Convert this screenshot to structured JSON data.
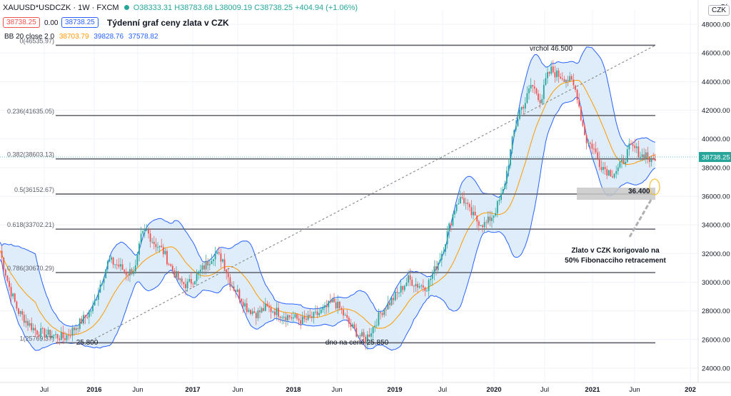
{
  "header": {
    "symbol": "XAUUSD*USDCZK · 1W · FXCM",
    "open": "O38333.31",
    "high": "H38783.68",
    "low": "L38009.19",
    "close": "C38738.25",
    "change": "+404.94 (+1.06%)",
    "sell_price": "38738.25",
    "spread": "0.00",
    "buy_price": "38738.25",
    "title": "Týdenní graf ceny zlata v CZK",
    "indicator_label": "BB 20 close 2 0",
    "bb_basis": "38703.79",
    "bb_upper": "39828.76",
    "bb_lower": "37578.82",
    "currency_button": "CZK",
    "top_right_cut": "5("
  },
  "colors": {
    "up": "#26a69a",
    "down": "#ef5350",
    "bb_fill": "#d6e9f8",
    "bb_band": "#2962ff",
    "bb_basis": "#ff9800",
    "fib_line": "#5d606b",
    "price_tag": "#26a69a"
  },
  "chart_data": {
    "type": "candlestick",
    "title": "Týdenní graf ceny zlata v CZK",
    "y_axis": {
      "ticks": [
        "48000.00",
        "46000.00",
        "44000.00",
        "42000.00",
        "40000.00",
        "38000.00",
        "36000.00",
        "34000.00",
        "32000.00",
        "30000.00",
        "28000.00",
        "26000.00",
        "24000.00"
      ],
      "ylim": [
        23000,
        49000
      ]
    },
    "x_axis": {
      "ticks": [
        "Jul",
        "2016",
        "Jun",
        "2017",
        "Jun",
        "2018",
        "Jun",
        "2019",
        "Jul",
        "2020",
        "Jul",
        "2021",
        "Jun",
        "202"
      ]
    },
    "last_price": "38738.25",
    "fib_levels": [
      {
        "label": "0(46535.97)",
        "value": 46535.97
      },
      {
        "label": "0.236(41635.05)",
        "value": 41635.05
      },
      {
        "label": "0.382(38603.13)",
        "value": 38603.13
      },
      {
        "label": "0.5(36152.67)",
        "value": 36152.67
      },
      {
        "label": "0.618(33702.21)",
        "value": 33702.21
      },
      {
        "label": "0.786(30670.29)",
        "value": 30670.29
      },
      {
        "label": "1(25769.37)",
        "value": 25769.37
      }
    ],
    "annotations": [
      {
        "text": "vrchol 46.500"
      },
      {
        "text": "25.800"
      },
      {
        "text": "dno na ceně 25.850"
      },
      {
        "text": "36.400"
      },
      {
        "text": "Zlato v CZK korigovalo na"
      },
      {
        "text": "50% Fibonacciho retracement"
      }
    ],
    "price_path": [
      [
        0,
        32200
      ],
      [
        12,
        29800
      ],
      [
        25,
        28000
      ],
      [
        38,
        27200
      ],
      [
        50,
        26600
      ],
      [
        62,
        26400
      ],
      [
        75,
        26300
      ],
      [
        90,
        26100
      ],
      [
        105,
        26800
      ],
      [
        120,
        27600
      ],
      [
        130,
        28200
      ],
      [
        140,
        29800
      ],
      [
        152,
        31500
      ],
      [
        165,
        31200
      ],
      [
        178,
        30600
      ],
      [
        190,
        31000
      ],
      [
        198,
        33200
      ],
      [
        205,
        33600
      ],
      [
        215,
        32800
      ],
      [
        228,
        32200
      ],
      [
        240,
        31000
      ],
      [
        252,
        30000
      ],
      [
        262,
        29800
      ],
      [
        275,
        30400
      ],
      [
        288,
        31200
      ],
      [
        300,
        32000
      ],
      [
        312,
        31600
      ],
      [
        322,
        30000
      ],
      [
        334,
        29200
      ],
      [
        346,
        28200
      ],
      [
        360,
        27800
      ],
      [
        372,
        28200
      ],
      [
        385,
        28000
      ],
      [
        398,
        27700
      ],
      [
        412,
        27500
      ],
      [
        425,
        27300
      ],
      [
        440,
        27600
      ],
      [
        455,
        28100
      ],
      [
        467,
        28700
      ],
      [
        478,
        28000
      ],
      [
        490,
        27000
      ],
      [
        503,
        26300
      ],
      [
        512,
        26000
      ],
      [
        522,
        26800
      ],
      [
        535,
        28000
      ],
      [
        548,
        28700
      ],
      [
        560,
        29400
      ],
      [
        572,
        30200
      ],
      [
        585,
        29800
      ],
      [
        598,
        29700
      ],
      [
        610,
        31000
      ],
      [
        620,
        32200
      ],
      [
        630,
        34000
      ],
      [
        640,
        35600
      ],
      [
        648,
        35900
      ],
      [
        658,
        34900
      ],
      [
        668,
        34300
      ],
      [
        680,
        34000
      ],
      [
        692,
        34800
      ],
      [
        704,
        36200
      ],
      [
        712,
        38300
      ],
      [
        720,
        40500
      ],
      [
        728,
        42000
      ],
      [
        736,
        42600
      ],
      [
        744,
        43800
      ],
      [
        752,
        43200
      ],
      [
        758,
        42600
      ],
      [
        765,
        44200
      ],
      [
        772,
        44800
      ],
      [
        780,
        44500
      ],
      [
        790,
        44300
      ],
      [
        800,
        44000
      ],
      [
        808,
        43200
      ],
      [
        815,
        41200
      ],
      [
        822,
        39800
      ],
      [
        830,
        39500
      ],
      [
        840,
        38300
      ],
      [
        850,
        37800
      ],
      [
        858,
        37600
      ],
      [
        866,
        37900
      ],
      [
        874,
        38500
      ],
      [
        882,
        39400
      ],
      [
        890,
        39300
      ],
      [
        898,
        38800
      ],
      [
        906,
        39000
      ],
      [
        912,
        38300
      ],
      [
        918,
        38738
      ]
    ]
  }
}
